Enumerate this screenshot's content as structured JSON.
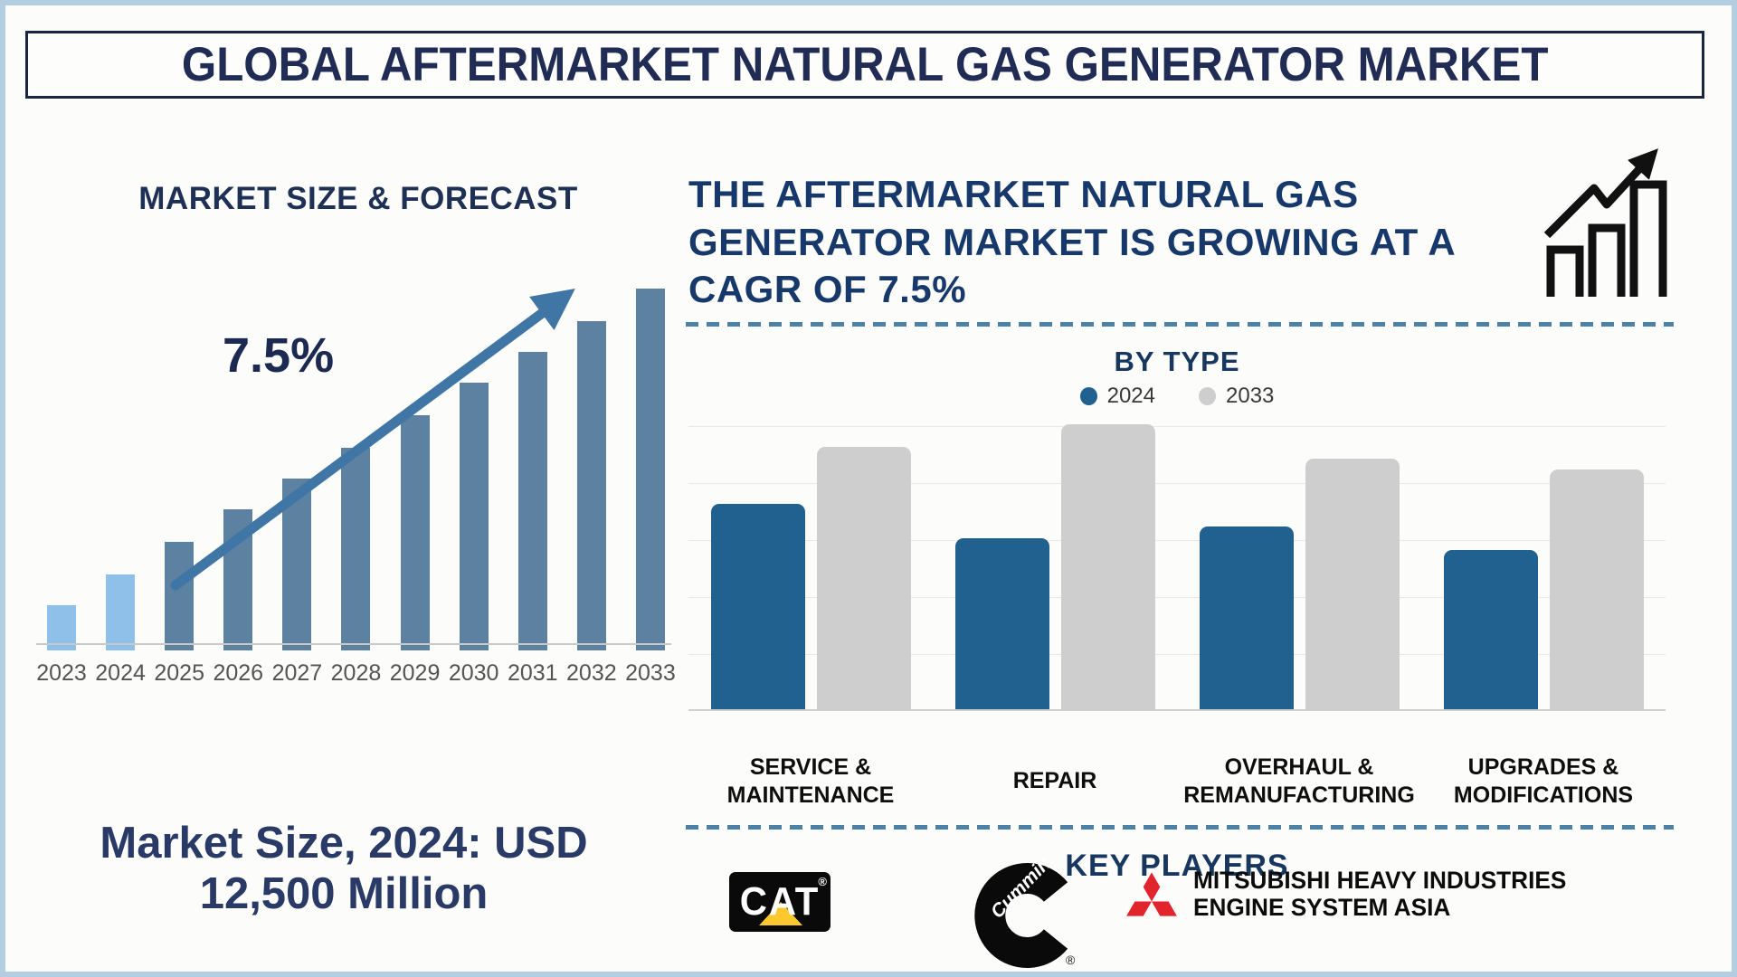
{
  "page": {
    "title": "GLOBAL AFTERMARKET NATURAL GAS GENERATOR MARKET",
    "background_color": "#fcfcfa",
    "frame_color": "#b5cde0",
    "navy_color": "#1c2a52"
  },
  "left_section": {
    "heading": "MARKET SIZE & FORECAST",
    "cagr_label": "7.5%",
    "caption": "Market Size, 2024: USD\n12,500 Million",
    "arrow_color": "#3f76a6"
  },
  "right_section": {
    "headline": "THE AFTERMARKET NATURAL GAS\nGENERATOR MARKET IS GROWING AT A\nCAGR OF 7.5%",
    "by_type_title": "BY TYPE",
    "legend": [
      {
        "label": "2024",
        "color": "#21618f"
      },
      {
        "label": "2033",
        "color": "#cecece"
      }
    ],
    "key_players_title": "KEY PLAYERS",
    "players": [
      {
        "name": "Caterpillar",
        "logo_text": "CAT",
        "reg_mark": "®",
        "accent_color": "#fcc82d"
      },
      {
        "name": "Cummins",
        "logo_text": "Cummins",
        "reg_mark": "®"
      },
      {
        "name": "Mitsubishi Heavy Industries Engine System Asia",
        "logo_text": "MITSUBISHI HEAVY INDUSTRIES\nENGINE SYSTEM ASIA",
        "mark_color": "#e2242c"
      }
    ]
  },
  "chart_data": [
    {
      "type": "bar",
      "title": "MARKET SIZE & FORECAST",
      "categories": [
        "2023",
        "2024",
        "2025",
        "2026",
        "2027",
        "2028",
        "2029",
        "2030",
        "2031",
        "2032",
        "2033"
      ],
      "relative_heights_pct": [
        12.5,
        21,
        30,
        39,
        47.5,
        56,
        65,
        74,
        82.5,
        91,
        100
      ],
      "annotation": "7.5%",
      "known_values": {
        "market_size_2024_usd_million": 12500,
        "cagr_pct": 7.5
      },
      "bar_color": "#5d81a1",
      "highlight_color": "#8fc0ea",
      "highlight_categories": [
        "2023",
        "2024"
      ],
      "ylabel": "",
      "y_axis_visible": false,
      "grid": false
    },
    {
      "type": "bar",
      "title": "BY TYPE",
      "categories": [
        "SERVICE &\nMAINTENANCE",
        "REPAIR",
        "OVERHAUL &\nREMANUFACTURING",
        "UPGRADES &\nMODIFICATIONS"
      ],
      "series": [
        {
          "name": "2024",
          "color": "#21618f",
          "relative_heights_pct": [
            72,
            60,
            64,
            56
          ]
        },
        {
          "name": "2033",
          "color": "#cecece",
          "relative_heights_pct": [
            92,
            100,
            88,
            84
          ]
        }
      ],
      "legend_position": "top",
      "grid": true,
      "y_axis_visible": false
    }
  ]
}
